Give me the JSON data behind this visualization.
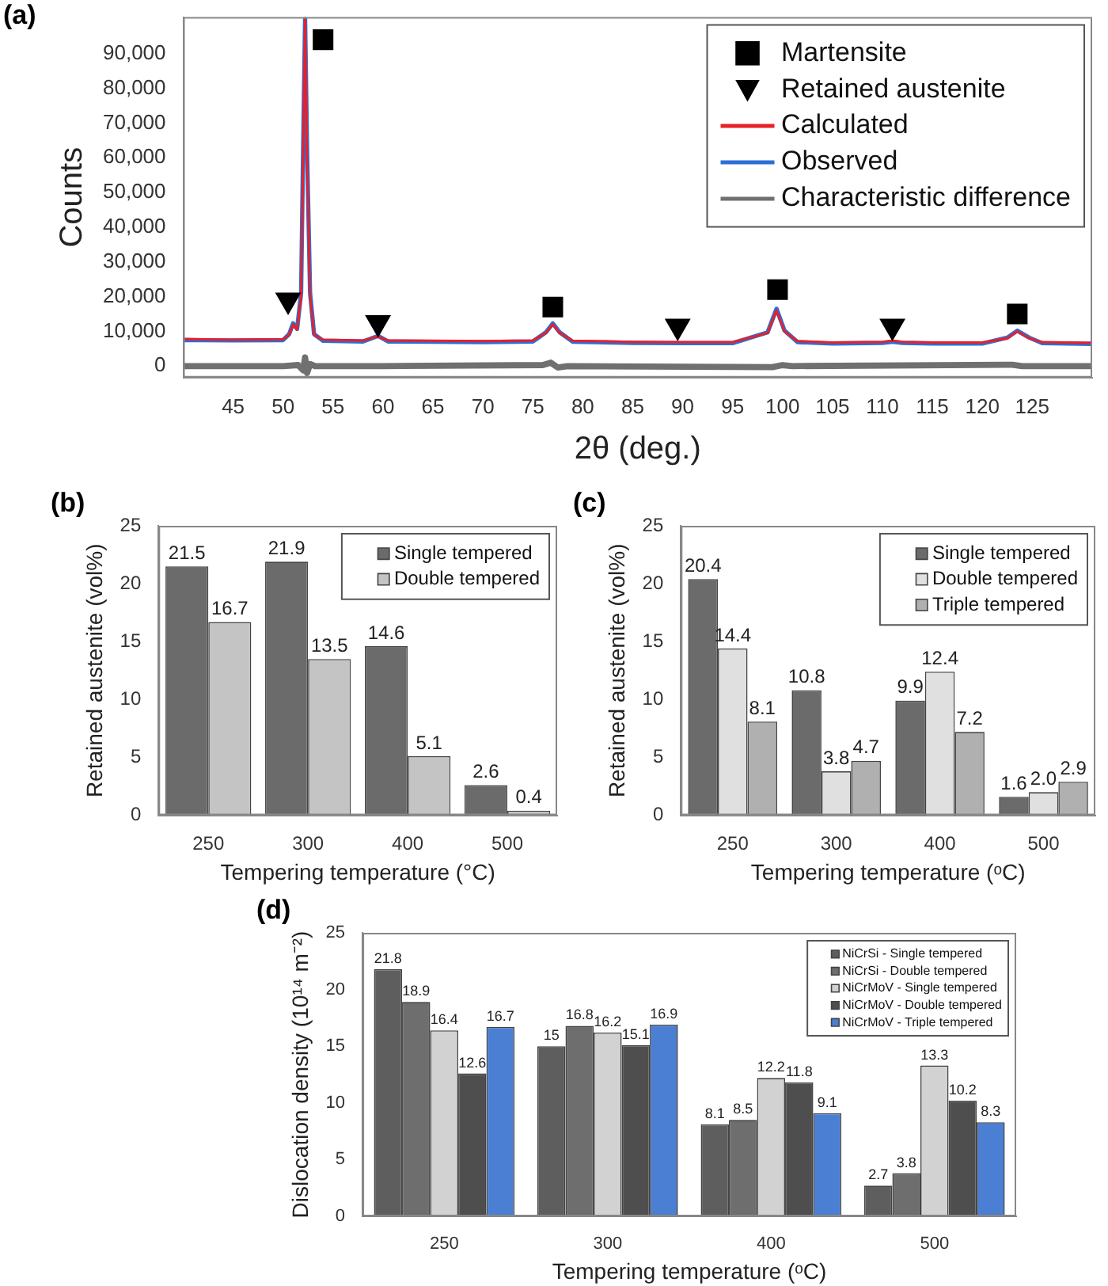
{
  "chart_data": [
    {
      "type": "line",
      "title": "(a)",
      "xlabel": "2θ (deg.)",
      "ylabel": "Counts",
      "legend": "top right",
      "xlim": [
        40,
        131
      ],
      "xticks": [
        45,
        50,
        55,
        60,
        65,
        70,
        75,
        80,
        85,
        90,
        95,
        100,
        105,
        110,
        115,
        120,
        125
      ],
      "ylim": [
        -3300,
        100500
      ],
      "yticks": [
        0,
        {
          "value": 10000,
          "label": "10,000"
        },
        {
          "value": 20000,
          "label": "20,000"
        },
        {
          "value": 30000,
          "label": "30,000"
        },
        {
          "value": 40000,
          "label": "40,000"
        },
        {
          "value": 50000,
          "label": "50,000"
        },
        {
          "value": 60000,
          "label": "60,000"
        },
        {
          "value": 70000,
          "label": "70,000"
        },
        {
          "value": 80000,
          "label": "80,000"
        },
        {
          "value": 90000,
          "label": "90,000"
        }
      ],
      "series": [
        {
          "name": "Martensite",
          "type": "scatter",
          "marker": "square",
          "color": "#000000",
          "x": [
            54,
            77,
            99.5,
            123.5
          ],
          "values": [
            94000,
            17000,
            22000,
            15000
          ]
        },
        {
          "name": "Retained austenite",
          "type": "scatter",
          "marker": "triangle",
          "color": "#000000",
          "x": [
            50.5,
            59.5,
            89.5,
            111
          ],
          "values": [
            19000,
            12500,
            11500,
            11500
          ]
        },
        {
          "name": "Calculated",
          "type": "line",
          "color": "#e8202a",
          "x": [
            40,
            45,
            50,
            50.6,
            51,
            51.4,
            51.8,
            52.0,
            52.2,
            52.4,
            52.7,
            53.1,
            54,
            58,
            59.5,
            60.5,
            65,
            70,
            75,
            76.3,
            77,
            77.7,
            79,
            85,
            90,
            95,
            98.5,
            99.4,
            100.2,
            101.5,
            105,
            110,
            111,
            112,
            115,
            120,
            122.5,
            123.5,
            124.7,
            126,
            131
          ],
          "values": [
            7800,
            7600,
            7700,
            9000,
            12000,
            10500,
            20000,
            60000,
            100000,
            60000,
            20000,
            9000,
            7600,
            7400,
            8500,
            7400,
            7300,
            7200,
            7400,
            9500,
            12000,
            9500,
            7300,
            7000,
            6900,
            6900,
            9500,
            16000,
            10000,
            7200,
            6800,
            7000,
            7300,
            7000,
            6800,
            6800,
            8000,
            10000,
            8000,
            6900,
            6700
          ]
        },
        {
          "name": "Observed",
          "type": "line",
          "color": "#2a6fd6",
          "x": [
            40,
            45,
            50,
            50.6,
            51,
            51.4,
            51.8,
            52.0,
            52.2,
            52.4,
            52.7,
            53.1,
            54,
            58,
            59.5,
            60.5,
            65,
            70,
            75,
            76.3,
            77,
            77.7,
            79,
            85,
            90,
            95,
            98.5,
            99.4,
            100.2,
            101.5,
            105,
            110,
            111,
            112,
            115,
            120,
            122.5,
            123.5,
            124.7,
            126,
            131
          ],
          "values": [
            7500,
            7400,
            7500,
            9200,
            12300,
            10700,
            21000,
            62000,
            100000,
            62000,
            21000,
            9200,
            7300,
            7100,
            8700,
            7100,
            7000,
            6900,
            7100,
            9700,
            12300,
            9700,
            7000,
            6700,
            6600,
            6600,
            9700,
            16500,
            10200,
            6900,
            6500,
            6700,
            7000,
            6700,
            6500,
            6500,
            8200,
            10200,
            8200,
            6600,
            6400
          ]
        },
        {
          "name": "Characteristic difference",
          "type": "line",
          "color": "#707070",
          "x": [
            40,
            50,
            51.5,
            52,
            52.2,
            52.4,
            52.7,
            53.2,
            60,
            76,
            76.8,
            77.5,
            78.5,
            99,
            100,
            101,
            123,
            124,
            131
          ],
          "values": [
            0,
            0,
            300,
            -1200,
            2500,
            -2000,
            600,
            0,
            0,
            300,
            1000,
            -400,
            0,
            -300,
            300,
            0,
            400,
            0,
            0
          ]
        }
      ]
    },
    {
      "type": "bar",
      "title": "(b)",
      "xlabel": "Tempering temperature (°C)",
      "ylabel": "Retained austenite (vol%)",
      "legend": "top right",
      "data_labels": true,
      "categories": [
        "250",
        "300",
        "400",
        "500"
      ],
      "ylim": [
        0,
        25
      ],
      "yticks": [
        0,
        5,
        10,
        15,
        20,
        25
      ],
      "series": [
        {
          "name": "Single tempered",
          "color": "#6b6b6b",
          "values": [
            21.5,
            21.9,
            14.6,
            2.6
          ]
        },
        {
          "name": "Double tempered",
          "color": "#c4c4c4",
          "values": [
            16.7,
            13.5,
            5.1,
            0.4
          ]
        }
      ]
    },
    {
      "type": "bar",
      "title": "(c)",
      "xlabel": "Tempering temperature (ᵒC)",
      "ylabel": "Retained austenite (vol%)",
      "legend": "top right",
      "categories": [
        "250",
        "300",
        "400",
        "500"
      ],
      "ylim": [
        0,
        25
      ],
      "yticks": [
        0,
        5,
        10,
        15,
        20,
        25
      ],
      "series": [
        {
          "name": "Single tempered",
          "color": "#6b6b6b",
          "values": [
            20.4,
            10.8,
            9.9,
            1.6
          ],
          "value_labels": [
            "20.4",
            "10.8",
            "9.9",
            "1.6"
          ]
        },
        {
          "name": "Double tempered",
          "color": "#e0e0e0",
          "values": [
            14.4,
            3.8,
            12.4,
            2.0
          ],
          "value_labels": [
            "14.4",
            "3.8",
            "12.4",
            "2.0"
          ]
        },
        {
          "name": "Triple tempered",
          "color": "#b0b0b0",
          "values": [
            8.1,
            4.7,
            7.2,
            2.9
          ],
          "value_labels": [
            "8.1",
            "4.7",
            "7.2",
            "2.9"
          ]
        }
      ]
    },
    {
      "type": "bar",
      "title": "(d)",
      "xlabel": "Tempering temperature (ᵒC)",
      "ylabel": "Dislocation density (10¹⁴ m⁻²)",
      "legend": "top right",
      "data_labels": true,
      "categories": [
        "250",
        "300",
        "400",
        "500"
      ],
      "ylim": [
        0,
        25
      ],
      "yticks": [
        0,
        5,
        10,
        15,
        20,
        25
      ],
      "series": [
        {
          "name": "NiCrSi - Single tempered",
          "color": "#5e5e5e",
          "values": [
            21.8,
            15,
            8.1,
            2.7
          ]
        },
        {
          "name": "NiCrSi - Double tempered",
          "color": "#6e6e6e",
          "values": [
            18.9,
            16.8,
            8.5,
            3.8
          ]
        },
        {
          "name": "NiCrMoV - Single tempered",
          "color": "#d2d2d2",
          "values": [
            16.4,
            16.2,
            12.2,
            13.3
          ]
        },
        {
          "name": "NiCrMoV - Double tempered",
          "color": "#4e4e4e",
          "values": [
            12.6,
            15.1,
            11.8,
            10.2
          ]
        },
        {
          "name": "NiCrMoV - Triple tempered",
          "color": "#4a7fd4",
          "values": [
            16.7,
            16.9,
            9.1,
            8.3
          ]
        }
      ]
    }
  ]
}
